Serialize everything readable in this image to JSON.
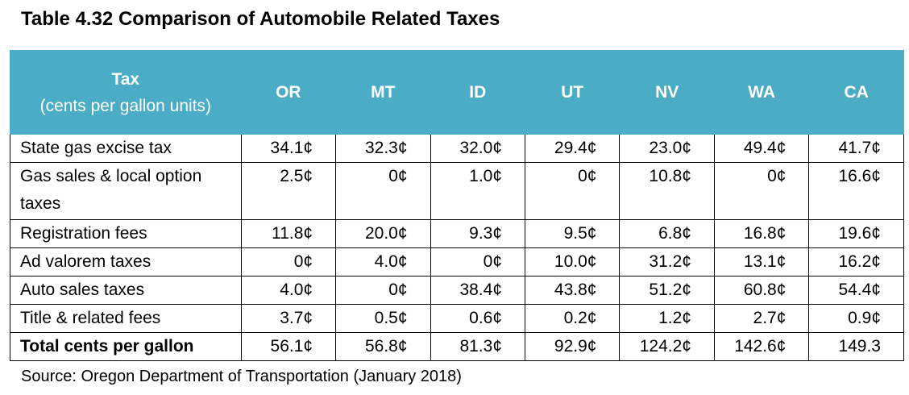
{
  "title": "Table 4.32 Comparison of Automobile Related Taxes",
  "header": {
    "tax_main": "Tax",
    "tax_sub": "(cents per gallon units)",
    "states": [
      "OR",
      "MT",
      "ID",
      "UT",
      "NV",
      "WA",
      "CA"
    ]
  },
  "rows": [
    {
      "label": "State gas excise tax",
      "values": [
        "34.1¢",
        "32.3¢",
        "32.0¢",
        "29.4¢",
        "23.0¢",
        "49.4¢",
        "41.7¢"
      ]
    },
    {
      "label": "Gas sales & local option taxes",
      "values": [
        "2.5¢",
        "0¢",
        "1.0¢",
        "0¢",
        "10.8¢",
        "0¢",
        "16.6¢"
      ]
    },
    {
      "label": "Registration fees",
      "values": [
        "11.8¢",
        "20.0¢",
        "9.3¢",
        "9.5¢",
        "6.8¢",
        "16.8¢",
        "19.6¢"
      ]
    },
    {
      "label": "Ad valorem taxes",
      "values": [
        "0¢",
        "4.0¢",
        "0¢",
        "10.0¢",
        "31.2¢",
        "13.1¢",
        "16.2¢"
      ]
    },
    {
      "label": "Auto sales taxes",
      "values": [
        "4.0¢",
        "0¢",
        "38.4¢",
        "43.8¢",
        "51.2¢",
        "60.8¢",
        "54.4¢"
      ]
    },
    {
      "label": "Title & related fees",
      "values": [
        "3.7¢",
        "0.5¢",
        "0.6¢",
        "0.2¢",
        "1.2¢",
        "2.7¢",
        "0.9¢"
      ]
    },
    {
      "label": "Total cents per gallon",
      "values": [
        "56.1¢",
        "56.8¢",
        "81.3¢",
        "92.9¢",
        "124.2¢",
        "142.6¢",
        "149.3"
      ]
    }
  ],
  "source": "Source: Oregon Department of Transportation (January 2018)"
}
